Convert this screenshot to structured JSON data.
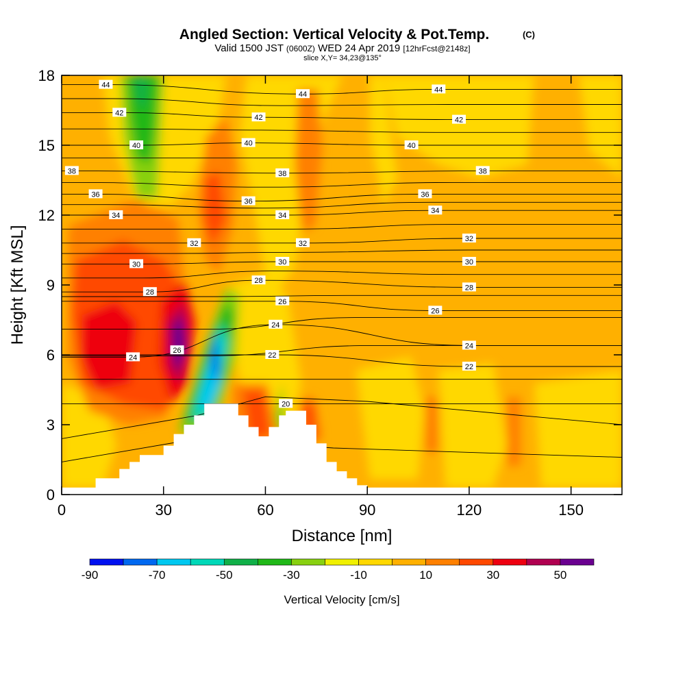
{
  "header": {
    "title": "Angled Section: Vertical Velocity & Pot.Temp.",
    "title_units": "(C)",
    "valid_prefix": "Valid 1500 JST",
    "valid_utc": "(0600Z)",
    "valid_date": "WED 24 Apr 2019",
    "forecast": "[12hrFcst@2148z]",
    "slice": "slice X,Y= 34,23@135°"
  },
  "chart_data": {
    "type": "heatmap",
    "xlabel": "Distance [nm]",
    "ylabel": "Height [Kft MSL]",
    "xlim": [
      0,
      165
    ],
    "ylim": [
      0,
      18
    ],
    "x_ticks": [
      0,
      30,
      60,
      90,
      120,
      150
    ],
    "y_ticks": [
      0,
      3,
      6,
      9,
      12,
      15,
      18
    ],
    "fill_variable": {
      "name": "Vertical Velocity [cm/s]",
      "levels": [
        -90,
        -80,
        -70,
        -60,
        -50,
        -40,
        -30,
        -20,
        -10,
        0,
        10,
        20,
        30,
        40,
        50,
        60
      ],
      "colors": [
        "#0010f0",
        "#0068f0",
        "#00c8f0",
        "#00d8b8",
        "#10b048",
        "#20b818",
        "#88d010",
        "#f0f000",
        "#ffd800",
        "#ffb000",
        "#ff8000",
        "#ff4800",
        "#ee0010",
        "#b00050",
        "#6a0090"
      ],
      "colorbar_labels": [
        -90,
        -70,
        -50,
        -30,
        -10,
        10,
        30,
        50
      ]
    },
    "contour_variable": {
      "name": "Pot.Temp.",
      "units": "C",
      "labels": [
        {
          "value": 44,
          "x": 13,
          "y": 17.6
        },
        {
          "value": 44,
          "x": 71,
          "y": 17.2
        },
        {
          "value": 44,
          "x": 111,
          "y": 17.4
        },
        {
          "value": 42,
          "x": 17,
          "y": 16.4
        },
        {
          "value": 42,
          "x": 58,
          "y": 16.2
        },
        {
          "value": 42,
          "x": 117,
          "y": 16.1
        },
        {
          "value": 40,
          "x": 22,
          "y": 15.0
        },
        {
          "value": 40,
          "x": 55,
          "y": 15.1
        },
        {
          "value": 40,
          "x": 103,
          "y": 15.0
        },
        {
          "value": 38,
          "x": 3,
          "y": 13.9
        },
        {
          "value": 38,
          "x": 65,
          "y": 13.8
        },
        {
          "value": 38,
          "x": 124,
          "y": 13.9
        },
        {
          "value": 36,
          "x": 10,
          "y": 12.9
        },
        {
          "value": 36,
          "x": 55,
          "y": 12.6
        },
        {
          "value": 36,
          "x": 107,
          "y": 12.9
        },
        {
          "value": 34,
          "x": 16,
          "y": 12.0
        },
        {
          "value": 34,
          "x": 65,
          "y": 12.0
        },
        {
          "value": 34,
          "x": 110,
          "y": 12.2
        },
        {
          "value": 32,
          "x": 39,
          "y": 10.8
        },
        {
          "value": 32,
          "x": 71,
          "y": 10.8
        },
        {
          "value": 32,
          "x": 120,
          "y": 11.0
        },
        {
          "value": 30,
          "x": 22,
          "y": 9.9
        },
        {
          "value": 30,
          "x": 65,
          "y": 10.0
        },
        {
          "value": 30,
          "x": 120,
          "y": 10.0
        },
        {
          "value": 28,
          "x": 26,
          "y": 8.7
        },
        {
          "value": 28,
          "x": 58,
          "y": 9.2
        },
        {
          "value": 28,
          "x": 120,
          "y": 8.9
        },
        {
          "value": 26,
          "x": 65,
          "y": 8.3
        },
        {
          "value": 26,
          "x": 110,
          "y": 7.9
        },
        {
          "value": 26,
          "x": 34,
          "y": 6.2
        },
        {
          "value": 24,
          "x": 63,
          "y": 7.3
        },
        {
          "value": 24,
          "x": 120,
          "y": 6.4
        },
        {
          "value": 24,
          "x": 21,
          "y": 5.9
        },
        {
          "value": 22,
          "x": 62,
          "y": 6.0
        },
        {
          "value": 22,
          "x": 120,
          "y": 5.5
        },
        {
          "value": 20,
          "x": 66,
          "y": 3.9
        }
      ]
    },
    "terrain": {
      "x": [
        0,
        10,
        10,
        17,
        17,
        20,
        20,
        23,
        23,
        30,
        30,
        33,
        33,
        36,
        36,
        39,
        39,
        42,
        42,
        52,
        52,
        55,
        55,
        58,
        58,
        61,
        61,
        64,
        64,
        66,
        66,
        72,
        72,
        75,
        75,
        78,
        78,
        81,
        81,
        84,
        84,
        87,
        87,
        90,
        90,
        165
      ],
      "y": [
        0.3,
        0.3,
        0.7,
        0.7,
        1.1,
        1.1,
        1.4,
        1.4,
        1.7,
        1.7,
        2.1,
        2.1,
        2.6,
        2.6,
        3.0,
        3.0,
        3.4,
        3.4,
        3.9,
        3.9,
        3.4,
        3.4,
        2.9,
        2.9,
        2.5,
        2.5,
        2.9,
        2.9,
        3.4,
        3.4,
        3.6,
        3.6,
        3.0,
        3.0,
        2.2,
        2.2,
        1.4,
        1.4,
        1.0,
        1.0,
        0.7,
        0.7,
        0.4,
        0.4,
        0.3,
        0.3
      ]
    },
    "grid": false,
    "legend": "colorbar-bottom"
  }
}
